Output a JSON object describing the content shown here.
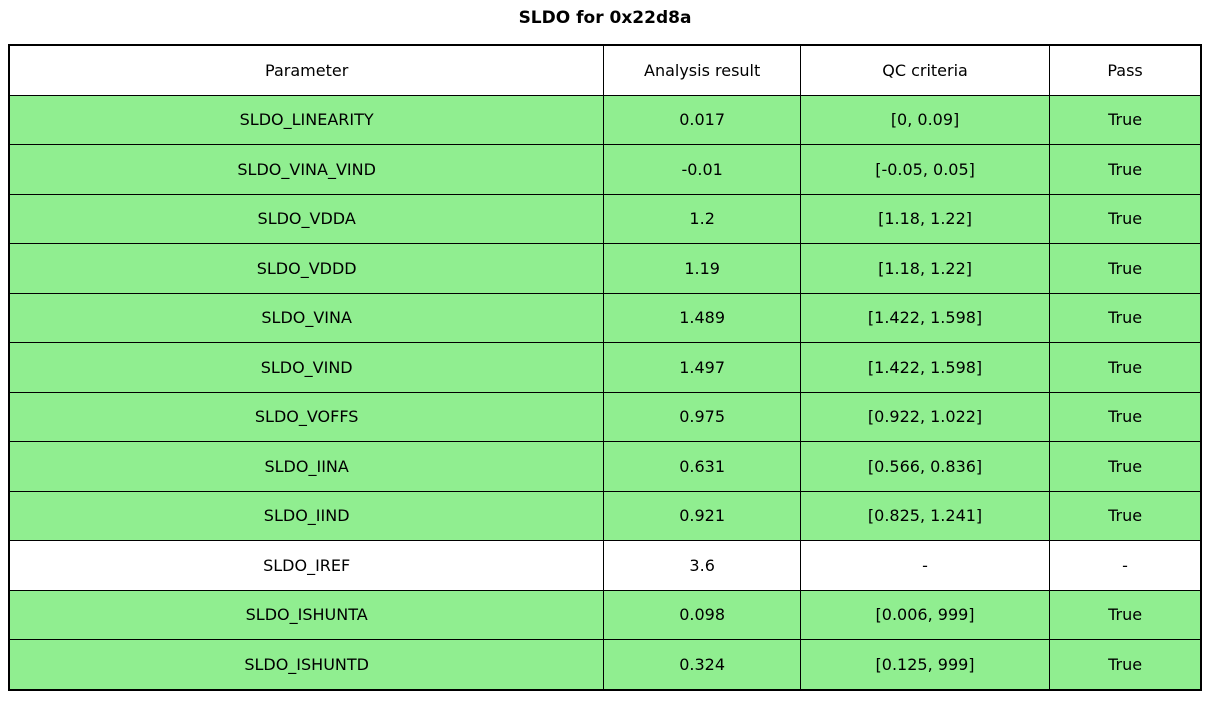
{
  "title": "SLDO for 0x22d8a",
  "colors": {
    "pass_green": "#90EE90",
    "border": "#000000",
    "background": "#FFFFFF",
    "text": "#000000"
  },
  "table": {
    "headers": [
      "Parameter",
      "Analysis result",
      "QC criteria",
      "Pass"
    ],
    "rows": [
      {
        "parameter": "SLDO_LINEARITY",
        "result": "0.017",
        "criteria": "[0, 0.09]",
        "pass": "True",
        "highlight": true
      },
      {
        "parameter": "SLDO_VINA_VIND",
        "result": "-0.01",
        "criteria": "[-0.05, 0.05]",
        "pass": "True",
        "highlight": true
      },
      {
        "parameter": "SLDO_VDDA",
        "result": "1.2",
        "criteria": "[1.18, 1.22]",
        "pass": "True",
        "highlight": true
      },
      {
        "parameter": "SLDO_VDDD",
        "result": "1.19",
        "criteria": "[1.18, 1.22]",
        "pass": "True",
        "highlight": true
      },
      {
        "parameter": "SLDO_VINA",
        "result": "1.489",
        "criteria": "[1.422, 1.598]",
        "pass": "True",
        "highlight": true
      },
      {
        "parameter": "SLDO_VIND",
        "result": "1.497",
        "criteria": "[1.422, 1.598]",
        "pass": "True",
        "highlight": true
      },
      {
        "parameter": "SLDO_VOFFS",
        "result": "0.975",
        "criteria": "[0.922, 1.022]",
        "pass": "True",
        "highlight": true
      },
      {
        "parameter": "SLDO_IINA",
        "result": "0.631",
        "criteria": "[0.566, 0.836]",
        "pass": "True",
        "highlight": true
      },
      {
        "parameter": "SLDO_IIND",
        "result": "0.921",
        "criteria": "[0.825, 1.241]",
        "pass": "True",
        "highlight": true
      },
      {
        "parameter": "SLDO_IREF",
        "result": "3.6",
        "criteria": "-",
        "pass": "-",
        "highlight": false
      },
      {
        "parameter": "SLDO_ISHUNTA",
        "result": "0.098",
        "criteria": "[0.006, 999]",
        "pass": "True",
        "highlight": true
      },
      {
        "parameter": "SLDO_ISHUNTD",
        "result": "0.324",
        "criteria": "[0.125, 999]",
        "pass": "True",
        "highlight": true
      }
    ]
  },
  "chart_data": {
    "type": "table",
    "title": "SLDO for 0x22d8a",
    "columns": [
      "Parameter",
      "Analysis result",
      "QC criteria",
      "Pass"
    ],
    "rows": [
      [
        "SLDO_LINEARITY",
        0.017,
        "[0, 0.09]",
        "True"
      ],
      [
        "SLDO_VINA_VIND",
        -0.01,
        "[-0.05, 0.05]",
        "True"
      ],
      [
        "SLDO_VDDA",
        1.2,
        "[1.18, 1.22]",
        "True"
      ],
      [
        "SLDO_VDDD",
        1.19,
        "[1.18, 1.22]",
        "True"
      ],
      [
        "SLDO_VINA",
        1.489,
        "[1.422, 1.598]",
        "True"
      ],
      [
        "SLDO_VIND",
        1.497,
        "[1.422, 1.598]",
        "True"
      ],
      [
        "SLDO_VOFFS",
        0.975,
        "[0.922, 1.022]",
        "True"
      ],
      [
        "SLDO_IINA",
        0.631,
        "[0.566, 0.836]",
        "True"
      ],
      [
        "SLDO_IIND",
        0.921,
        "[0.825, 1.241]",
        "True"
      ],
      [
        "SLDO_IREF",
        3.6,
        "-",
        "-"
      ],
      [
        "SLDO_ISHUNTA",
        0.098,
        "[0.006, 999]",
        "True"
      ],
      [
        "SLDO_ISHUNTD",
        0.324,
        "[0.125, 999]",
        "True"
      ]
    ],
    "layout": {
      "highlight_color": "#90EE90",
      "non_highlight_rows": [
        "SLDO_IREF"
      ],
      "legend": "none",
      "grid": "full-borders"
    }
  }
}
